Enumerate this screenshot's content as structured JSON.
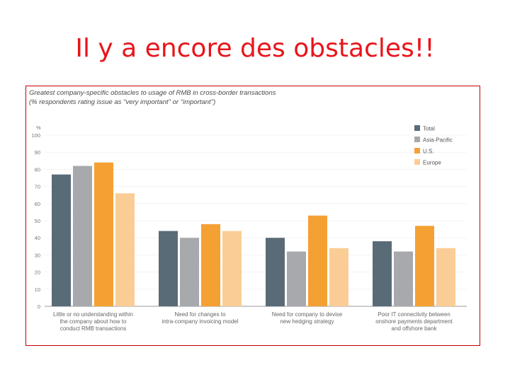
{
  "slide": {
    "title": "Il y a encore des obstacles!!"
  },
  "chart_data": {
    "type": "bar",
    "title": "Greatest company-specific obstacles to usage of RMB in cross-border transactions",
    "subtitle": "(% respondents rating issue as \"very important\" or \"important\")",
    "ylabel": "%",
    "ylim": [
      0,
      100
    ],
    "yticks": [
      0,
      10,
      20,
      30,
      40,
      50,
      60,
      70,
      80,
      90,
      100
    ],
    "categories": [
      [
        "Little or no understanding within",
        "the company about how to",
        "conduct RMB transactions"
      ],
      [
        "Need for changes to",
        "intra-company invoicing model"
      ],
      [
        "Need for company to devise",
        "new hedging strategy"
      ],
      [
        "Poor IT connectivity between",
        "onshore payments department",
        "and offshore bank"
      ]
    ],
    "series": [
      {
        "name": "Total",
        "color": "#5a6b78",
        "values": [
          77,
          44,
          40,
          38
        ]
      },
      {
        "name": "Asia-Pacific",
        "color": "#a7a9ac",
        "values": [
          82,
          40,
          32,
          32
        ]
      },
      {
        "name": "U.S.",
        "color": "#f5a033",
        "values": [
          84,
          48,
          53,
          47
        ]
      },
      {
        "name": "Europe",
        "color": "#fbcd96",
        "values": [
          66,
          44,
          34,
          34
        ]
      }
    ],
    "legend_position": "top-right"
  }
}
